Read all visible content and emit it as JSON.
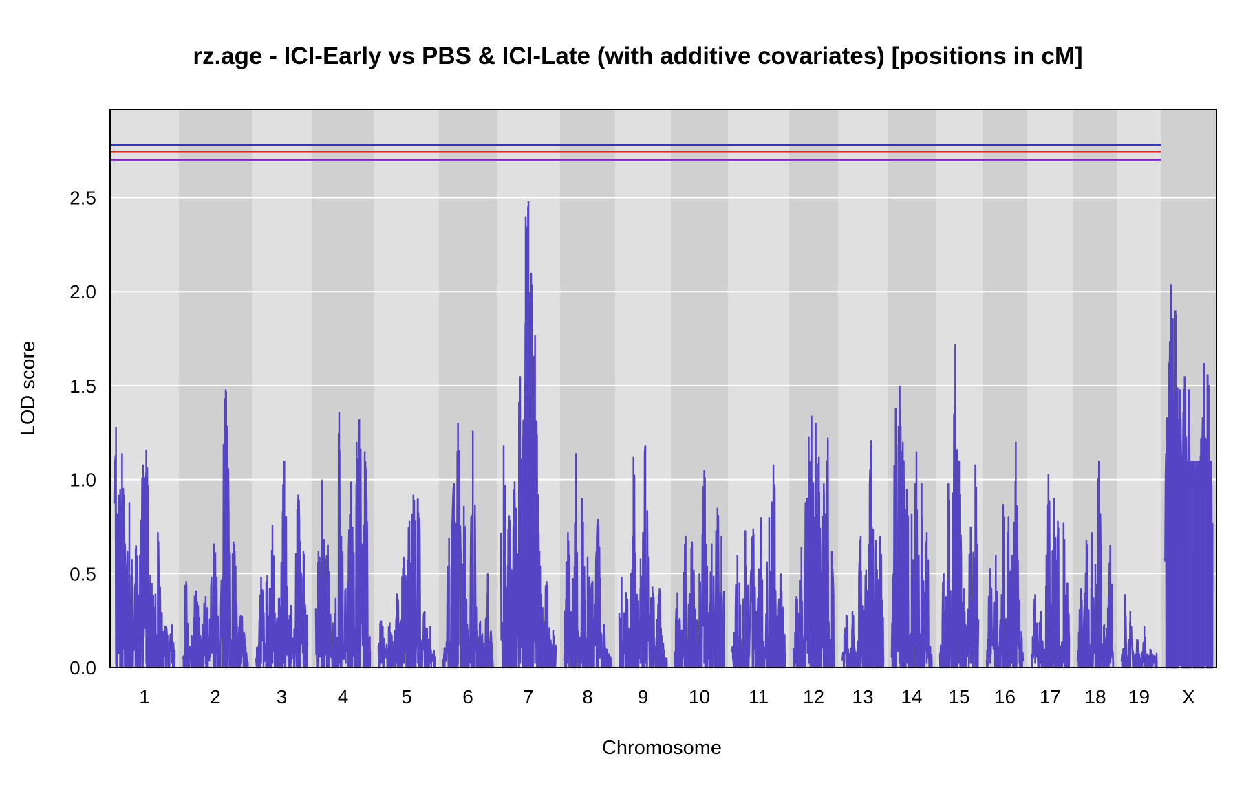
{
  "chart_data": {
    "type": "line",
    "title": "rz.age - ICI-Early vs PBS & ICI-Late (with additive covariates) [positions in cM]",
    "xlabel": "Chromosome",
    "ylabel": "LOD score",
    "ylim": [
      0,
      2.97
    ],
    "yticks": [
      "0.0",
      "0.5",
      "1.0",
      "1.5",
      "2.0",
      "2.5"
    ],
    "chromosomes": [
      {
        "name": "1",
        "peaks": [
          [
            0.03,
            1.28
          ],
          [
            0.13,
            1.14
          ],
          [
            0.25,
            0.88
          ],
          [
            0.36,
            0.65
          ],
          [
            0.48,
            1.08
          ],
          [
            0.53,
            1.16
          ],
          [
            0.62,
            0.45
          ],
          [
            0.72,
            0.72
          ],
          [
            0.85,
            0.22
          ],
          [
            0.95,
            0.23
          ]
        ]
      },
      {
        "name": "2",
        "peaks": [
          [
            0.05,
            0.46
          ],
          [
            0.2,
            0.41
          ],
          [
            0.35,
            0.38
          ],
          [
            0.48,
            0.66
          ],
          [
            0.66,
            1.48
          ],
          [
            0.78,
            0.67
          ],
          [
            0.9,
            0.28
          ]
        ]
      },
      {
        "name": "3",
        "peaks": [
          [
            0.1,
            0.48
          ],
          [
            0.22,
            0.49
          ],
          [
            0.32,
            0.76
          ],
          [
            0.45,
            0.37
          ],
          [
            0.55,
            1.1
          ],
          [
            0.68,
            0.33
          ],
          [
            0.82,
            0.92
          ],
          [
            0.92,
            0.62
          ]
        ]
      },
      {
        "name": "4",
        "peaks": [
          [
            0.05,
            0.62
          ],
          [
            0.12,
            1.0
          ],
          [
            0.22,
            0.65
          ],
          [
            0.35,
            0.29
          ],
          [
            0.43,
            1.36
          ],
          [
            0.55,
            0.42
          ],
          [
            0.65,
            0.99
          ],
          [
            0.75,
            1.2
          ],
          [
            0.8,
            1.32
          ],
          [
            0.9,
            1.15
          ]
        ]
      },
      {
        "name": "5",
        "peaks": [
          [
            0.05,
            0.25
          ],
          [
            0.2,
            0.24
          ],
          [
            0.33,
            0.39
          ],
          [
            0.45,
            0.59
          ],
          [
            0.55,
            0.78
          ],
          [
            0.62,
            0.92
          ],
          [
            0.7,
            0.9
          ],
          [
            0.82,
            0.3
          ],
          [
            0.92,
            0.22
          ]
        ]
      },
      {
        "name": "6",
        "peaks": [
          [
            0.12,
            0.69
          ],
          [
            0.22,
            0.98
          ],
          [
            0.3,
            1.3
          ],
          [
            0.42,
            0.86
          ],
          [
            0.55,
            0.33
          ],
          [
            0.6,
            1.26
          ],
          [
            0.75,
            0.25
          ],
          [
            0.9,
            0.5
          ]
        ]
      },
      {
        "name": "7",
        "peaks": [
          [
            0.05,
            1.18
          ],
          [
            0.15,
            0.81
          ],
          [
            0.25,
            0.99
          ],
          [
            0.35,
            1.55
          ],
          [
            0.45,
            2.4
          ],
          [
            0.5,
            2.48
          ],
          [
            0.55,
            2.1
          ],
          [
            0.62,
            1.77
          ],
          [
            0.7,
            0.62
          ],
          [
            0.83,
            0.46
          ],
          [
            0.95,
            0.2
          ]
        ]
      },
      {
        "name": "8",
        "peaks": [
          [
            0.08,
            0.72
          ],
          [
            0.25,
            1.14
          ],
          [
            0.38,
            0.9
          ],
          [
            0.5,
            0.59
          ],
          [
            0.6,
            0.46
          ],
          [
            0.72,
            0.79
          ],
          [
            0.85,
            0.23
          ]
        ]
      },
      {
        "name": "9",
        "peaks": [
          [
            0.05,
            0.48
          ],
          [
            0.15,
            0.4
          ],
          [
            0.3,
            1.12
          ],
          [
            0.45,
            0.58
          ],
          [
            0.55,
            1.18
          ],
          [
            0.7,
            0.43
          ],
          [
            0.85,
            0.42
          ]
        ]
      },
      {
        "name": "10",
        "peaks": [
          [
            0.05,
            0.4
          ],
          [
            0.22,
            0.7
          ],
          [
            0.35,
            0.67
          ],
          [
            0.5,
            0.5
          ],
          [
            0.6,
            1.05
          ],
          [
            0.75,
            0.66
          ],
          [
            0.87,
            0.85
          ],
          [
            0.95,
            0.7
          ]
        ]
      },
      {
        "name": "11",
        "peaks": [
          [
            0.1,
            0.6
          ],
          [
            0.25,
            0.73
          ],
          [
            0.4,
            0.74
          ],
          [
            0.55,
            0.8
          ],
          [
            0.7,
            0.8
          ],
          [
            0.78,
            1.08
          ],
          [
            0.92,
            0.5
          ]
        ]
      },
      {
        "name": "12",
        "peaks": [
          [
            0.08,
            0.38
          ],
          [
            0.2,
            0.64
          ],
          [
            0.3,
            0.88
          ],
          [
            0.38,
            1.23
          ],
          [
            0.45,
            1.34
          ],
          [
            0.55,
            1.3
          ],
          [
            0.63,
            1.12
          ],
          [
            0.75,
            0.98
          ],
          [
            0.85,
            1.22
          ],
          [
            0.95,
            0.62
          ]
        ]
      },
      {
        "name": "13",
        "peaks": [
          [
            0.1,
            0.28
          ],
          [
            0.25,
            0.3
          ],
          [
            0.45,
            0.7
          ],
          [
            0.58,
            0.52
          ],
          [
            0.7,
            1.21
          ],
          [
            0.82,
            0.68
          ],
          [
            0.92,
            0.7
          ]
        ]
      },
      {
        "name": "14",
        "peaks": [
          [
            0.1,
            1.38
          ],
          [
            0.2,
            1.5
          ],
          [
            0.28,
            1.2
          ],
          [
            0.38,
            0.95
          ],
          [
            0.5,
            0.82
          ],
          [
            0.62,
            1.15
          ],
          [
            0.75,
            0.98
          ],
          [
            0.88,
            0.72
          ]
        ]
      },
      {
        "name": "15",
        "peaks": [
          [
            0.1,
            0.5
          ],
          [
            0.22,
            0.98
          ],
          [
            0.4,
            1.72
          ],
          [
            0.5,
            1.1
          ],
          [
            0.62,
            0.42
          ],
          [
            0.8,
            0.75
          ],
          [
            0.92,
            1.08
          ]
        ]
      },
      {
        "name": "16",
        "peaks": [
          [
            0.1,
            0.53
          ],
          [
            0.25,
            0.6
          ],
          [
            0.45,
            0.87
          ],
          [
            0.6,
            0.8
          ],
          [
            0.7,
            0.6
          ],
          [
            0.8,
            1.2
          ],
          [
            0.9,
            0.36
          ]
        ]
      },
      {
        "name": "17",
        "peaks": [
          [
            0.1,
            0.39
          ],
          [
            0.25,
            0.3
          ],
          [
            0.45,
            1.03
          ],
          [
            0.6,
            0.9
          ],
          [
            0.7,
            0.78
          ],
          [
            0.85,
            0.77
          ],
          [
            0.95,
            0.45
          ]
        ]
      },
      {
        "name": "18",
        "peaks": [
          [
            0.1,
            0.42
          ],
          [
            0.25,
            0.68
          ],
          [
            0.4,
            0.72
          ],
          [
            0.5,
            0.55
          ],
          [
            0.6,
            1.1
          ],
          [
            0.75,
            0.23
          ],
          [
            0.85,
            0.32
          ],
          [
            0.92,
            0.65
          ]
        ]
      },
      {
        "name": "19",
        "peaks": [
          [
            0.1,
            0.39
          ],
          [
            0.25,
            0.3
          ],
          [
            0.45,
            0.15
          ],
          [
            0.65,
            0.22
          ],
          [
            0.82,
            0.1
          ],
          [
            0.95,
            0.06
          ]
        ]
      },
      {
        "name": "X",
        "peaks": [
          [
            0.08,
            1.49
          ],
          [
            0.13,
            2.04
          ],
          [
            0.22,
            1.9
          ],
          [
            0.32,
            1.48
          ],
          [
            0.42,
            1.55
          ],
          [
            0.5,
            1.48
          ],
          [
            0.6,
            1.1
          ],
          [
            0.72,
            1.1
          ],
          [
            0.82,
            1.62
          ],
          [
            0.9,
            1.56
          ],
          [
            0.97,
            1.1
          ]
        ]
      }
    ],
    "thresholds": [
      {
        "value": 2.78,
        "color": "#3333cc"
      },
      {
        "value": 2.745,
        "color": "#dd2222"
      },
      {
        "value": 2.7,
        "color": "#8a1fd6"
      }
    ],
    "series_color": "#5544c4",
    "grid": true
  }
}
